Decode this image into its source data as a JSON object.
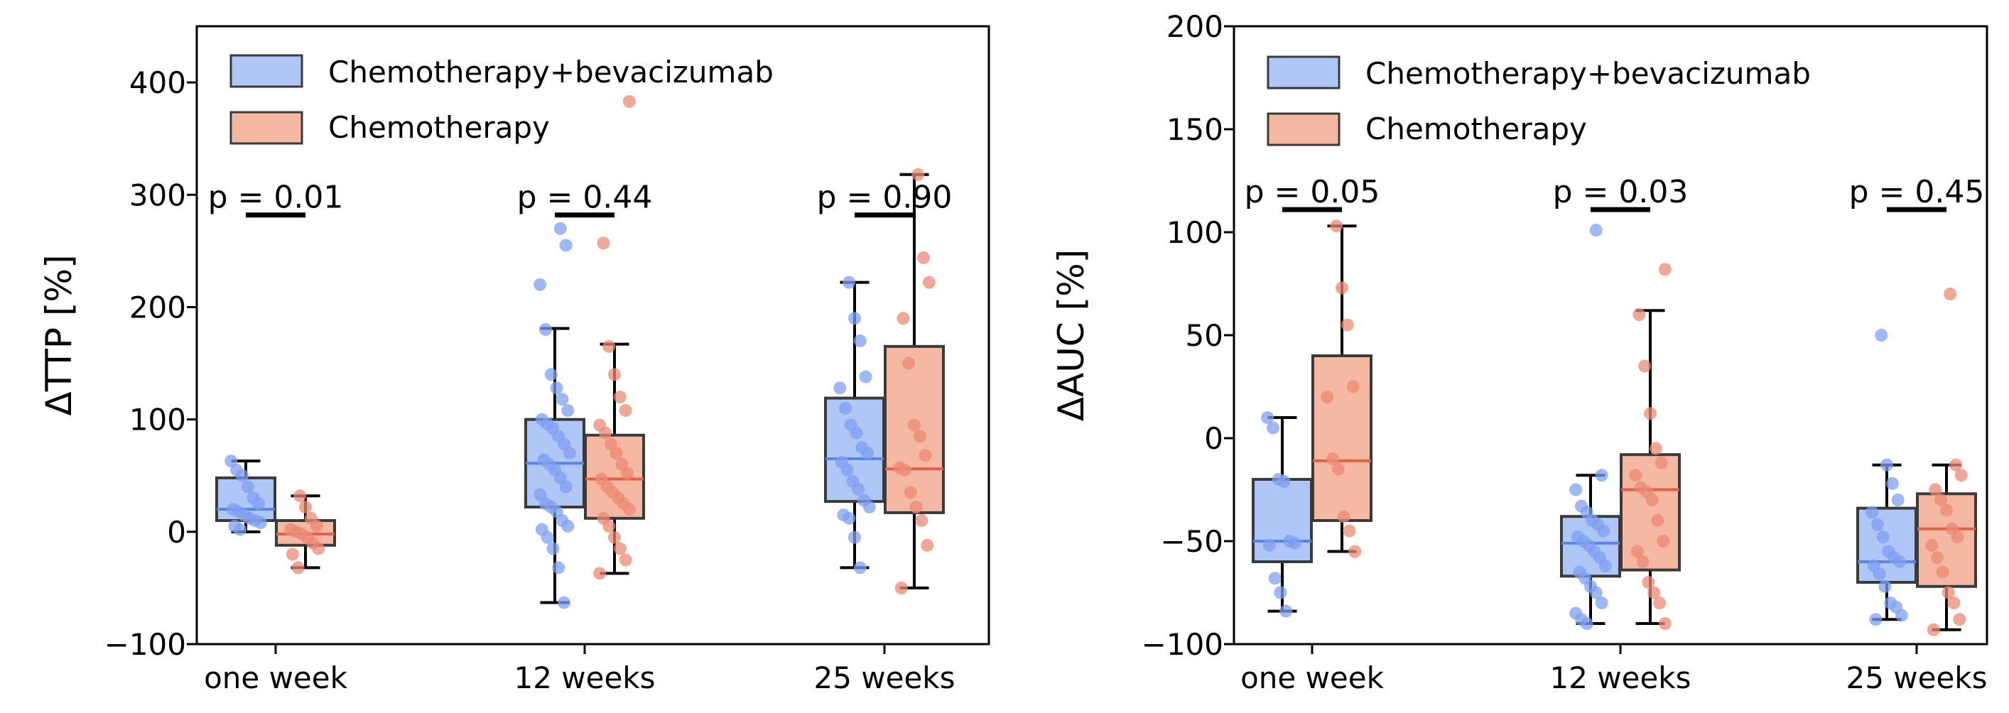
{
  "colors": {
    "cb_face": "#aec7f7",
    "cb_line": "#5b84e0",
    "cb_point": "#7f9ff0",
    "c_face": "#f5b8a3",
    "c_line": "#e0614a",
    "c_point": "#ea8a76"
  },
  "legend": {
    "series_cb": "Chemotherapy+bevacizumab",
    "series_c": "Chemotherapy"
  },
  "chart_data": [
    {
      "type": "box",
      "ylabel": "ΔTTP [%]",
      "ylim": [
        -100,
        450
      ],
      "yticks": [
        -100,
        0,
        100,
        200,
        300,
        400
      ],
      "categories": [
        "one week",
        "12 weeks",
        "25 weeks"
      ],
      "pvalues": [
        {
          "label": "p = 0.01",
          "y": 282
        },
        {
          "label": "p = 0.44",
          "y": 282
        },
        {
          "label": "p = 0.90",
          "y": 282
        }
      ],
      "series": [
        {
          "name": "Chemotherapy+bevacizumab",
          "boxes": [
            {
              "q1": 10,
              "median": 20,
              "q3": 48,
              "whislo": 0,
              "whishi": 63,
              "points": [
                63,
                55,
                50,
                40,
                30,
                25,
                20,
                18,
                15,
                12,
                10,
                8,
                5,
                2
              ]
            },
            {
              "q1": 22,
              "median": 61,
              "q3": 100,
              "whislo": -63,
              "whishi": 181,
              "points": [
                270,
                255,
                220,
                180,
                140,
                128,
                118,
                108,
                100,
                96,
                92,
                85,
                78,
                70,
                64,
                60,
                55,
                48,
                40,
                33,
                25,
                22,
                18,
                10,
                5,
                2,
                -5,
                -15,
                -32,
                -63
              ]
            },
            {
              "q1": 27,
              "median": 65,
              "q3": 119,
              "whislo": -32,
              "whishi": 222,
              "points": [
                222,
                190,
                170,
                138,
                128,
                110,
                95,
                88,
                75,
                70,
                62,
                55,
                45,
                38,
                28,
                22,
                15,
                12,
                -5,
                -32
              ]
            }
          ]
        },
        {
          "name": "Chemotherapy",
          "boxes": [
            {
              "q1": -12,
              "median": -2,
              "q3": 10,
              "whislo": -32,
              "whishi": 32,
              "points": [
                32,
                22,
                12,
                5,
                2,
                0,
                -2,
                -5,
                -10,
                -15,
                -20,
                -32
              ]
            },
            {
              "q1": 12,
              "median": 47,
              "q3": 86,
              "whislo": -37,
              "whishi": 167,
              "points": [
                383,
                257,
                165,
                140,
                120,
                108,
                95,
                88,
                78,
                70,
                60,
                52,
                47,
                40,
                35,
                30,
                25,
                20,
                12,
                5,
                -5,
                -15,
                -25,
                -37
              ]
            },
            {
              "q1": 17,
              "median": 56,
              "q3": 165,
              "whislo": -50,
              "whishi": 318,
              "points": [
                318,
                244,
                222,
                190,
                150,
                95,
                85,
                68,
                57,
                55,
                35,
                22,
                10,
                -12,
                -50
              ]
            }
          ]
        }
      ]
    },
    {
      "type": "box",
      "ylabel": "ΔAUC [%]",
      "ylim": [
        -100,
        200
      ],
      "yticks": [
        -100,
        -50,
        0,
        50,
        100,
        150,
        200
      ],
      "categories": [
        "one week",
        "12 weeks",
        "25 weeks"
      ],
      "pvalues": [
        {
          "label": "p = 0.05",
          "y": 111
        },
        {
          "label": "p = 0.03",
          "y": 111
        },
        {
          "label": "p = 0.45",
          "y": 111
        }
      ],
      "series": [
        {
          "name": "Chemotherapy+bevacizumab",
          "boxes": [
            {
              "q1": -60,
              "median": -50,
              "q3": -20,
              "whislo": -84,
              "whishi": 10,
              "points": [
                10,
                5,
                -20,
                -21,
                -50,
                -51,
                -52,
                -68,
                -75,
                -84
              ]
            },
            {
              "q1": -67,
              "median": -51,
              "q3": -38,
              "whislo": -90,
              "whishi": -18,
              "points": [
                101,
                -18,
                -25,
                -33,
                -36,
                -40,
                -42,
                -45,
                -48,
                -50,
                -52,
                -55,
                -58,
                -62,
                -65,
                -68,
                -72,
                -75,
                -80,
                -85,
                -88,
                -90
              ]
            },
            {
              "q1": -70,
              "median": -60,
              "q3": -34,
              "whislo": -88,
              "whishi": -13,
              "points": [
                50,
                -13,
                -22,
                -30,
                -36,
                -42,
                -48,
                -55,
                -58,
                -60,
                -62,
                -66,
                -72,
                -80,
                -82,
                -86,
                -88
              ]
            }
          ]
        },
        {
          "name": "Chemotherapy",
          "boxes": [
            {
              "q1": -40,
              "median": -11,
              "q3": 40,
              "whislo": -55,
              "whishi": 103,
              "points": [
                103,
                73,
                55,
                25,
                20,
                -10,
                -15,
                -38,
                -45,
                -55
              ]
            },
            {
              "q1": -64,
              "median": -25,
              "q3": -8,
              "whislo": -90,
              "whishi": 62,
              "points": [
                82,
                60,
                35,
                12,
                -5,
                -12,
                -18,
                -24,
                -26,
                -30,
                -40,
                -50,
                -55,
                -60,
                -70,
                -75,
                -80,
                -90
              ]
            },
            {
              "q1": -72,
              "median": -44,
              "q3": -27,
              "whislo": -93,
              "whishi": -13,
              "points": [
                70,
                -13,
                -18,
                -25,
                -30,
                -35,
                -44,
                -48,
                -52,
                -58,
                -65,
                -75,
                -80,
                -88,
                -93
              ]
            }
          ]
        }
      ]
    }
  ]
}
